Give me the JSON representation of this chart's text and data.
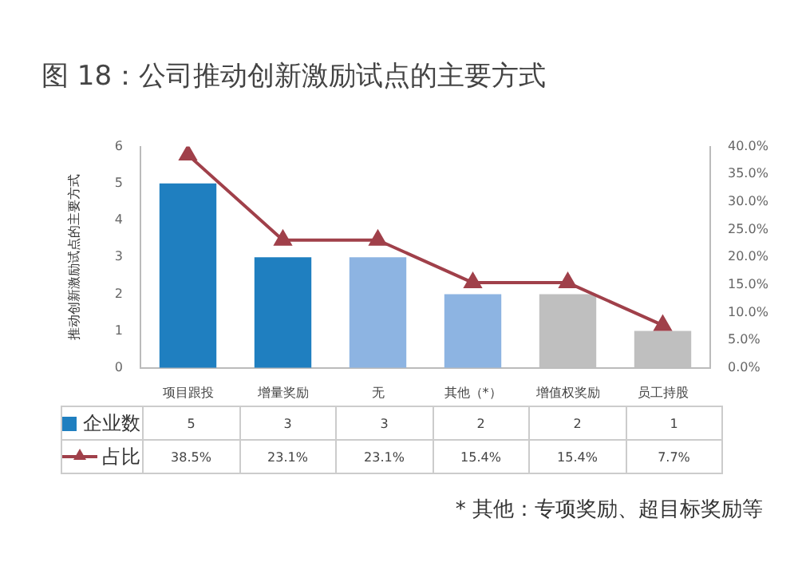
{
  "chart_data": {
    "type": "bar",
    "title": "图 18：公司推动创新激励试点的主要方式",
    "ylabel": "推动创新激励试点的主要方式",
    "categories": [
      "项目跟投",
      "增量奖励",
      "无",
      "其他（*）",
      "增值权奖励",
      "员工持股"
    ],
    "series": [
      {
        "name": "企业数",
        "color": "#1f7fc0",
        "colors": [
          "#1f7fc0",
          "#1f7fc0",
          "#8db4e2",
          "#8db4e2",
          "#bfbfbf",
          "#bfbfbf"
        ],
        "values": [
          5,
          3,
          3,
          2,
          2,
          1
        ],
        "value_labels": [
          "5",
          "3",
          "3",
          "2",
          "2",
          "1"
        ]
      },
      {
        "name": "占比",
        "type": "line",
        "axis": "y2",
        "color": "#a0404a",
        "marker": "triangle",
        "values": [
          38.5,
          23.1,
          23.1,
          15.4,
          15.4,
          7.7
        ],
        "value_labels": [
          "38.5%",
          "23.1%",
          "23.1%",
          "15.4%",
          "15.4%",
          "7.7%"
        ]
      }
    ],
    "ylim": [
      0,
      6
    ],
    "yticks": [
      0,
      1,
      2,
      3,
      4,
      5,
      6
    ],
    "y2lim": [
      0,
      40
    ],
    "y2ticks": [
      {
        "value": 0,
        "label": "0.0%"
      },
      {
        "value": 5,
        "label": "5.0%"
      },
      {
        "value": 10,
        "label": "10.0%"
      },
      {
        "value": 15,
        "label": "15.0%"
      },
      {
        "value": 20,
        "label": "20.0%"
      },
      {
        "value": 25,
        "label": "25.0%"
      },
      {
        "value": 30,
        "label": "30.0%"
      },
      {
        "value": 35,
        "label": "35.0%"
      },
      {
        "value": 40,
        "label": "40.0%"
      }
    ],
    "grid": false,
    "legend": "bottom left",
    "annotations": [
      "* 其他：专项奖励、超目标奖励等"
    ]
  }
}
